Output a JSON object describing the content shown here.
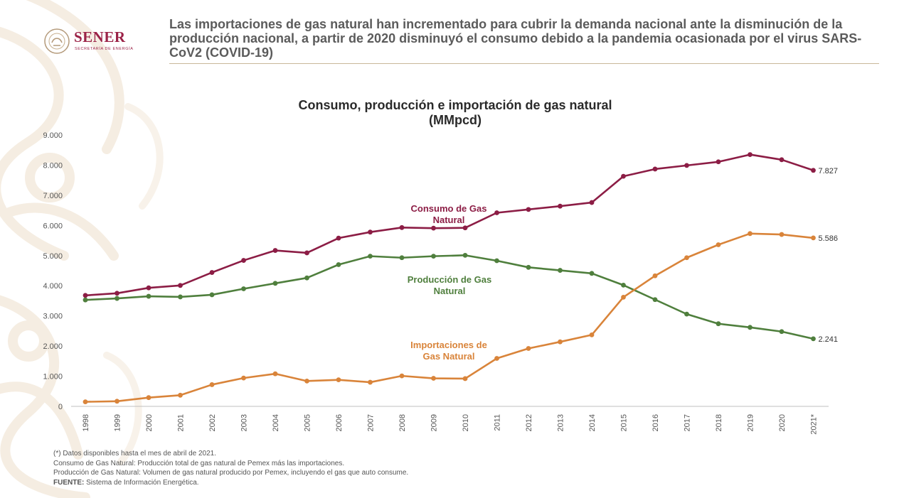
{
  "header": {
    "logo_text": "SENER",
    "logo_subtitle": "SECRETARÍA DE ENERGÍA",
    "headline": "Las importaciones de gas natural han incrementado para cubrir la demanda nacional ante la disminución de la producción nacional, a partir de 2020 disminuyó el consumo debido a la pandemia ocasionada por el virus SARS-CoV2 (COVID-19)"
  },
  "colors": {
    "consumo": "#8c1d45",
    "produccion": "#4f7f3d",
    "importaciones": "#d9843a",
    "axis": "#bfbfbf"
  },
  "chart_data": {
    "type": "line",
    "title": "Consumo, producción e importación de gas natural",
    "subtitle": "(MMpcd)",
    "ylim": [
      0,
      9000
    ],
    "yticks": [
      "0",
      "1.000",
      "2.000",
      "3.000",
      "4.000",
      "5.000",
      "6.000",
      "7.000",
      "8.000",
      "9.000"
    ],
    "categories": [
      "1998",
      "1999",
      "2000",
      "2001",
      "2002",
      "2003",
      "2004",
      "2005",
      "2006",
      "2007",
      "2008",
      "2009",
      "2010",
      "2011",
      "2012",
      "2013",
      "2014",
      "2015",
      "2016",
      "2017",
      "2018",
      "2019",
      "2020",
      "2021*"
    ],
    "grid": false,
    "series": [
      {
        "key": "consumo",
        "name_line1": "Consumo de Gas",
        "name_line2": "Natural",
        "end_label": "7.827",
        "values": [
          3680,
          3750,
          3930,
          4010,
          4440,
          4840,
          5170,
          5090,
          5580,
          5780,
          5930,
          5910,
          5920,
          6420,
          6530,
          6640,
          6760,
          7630,
          7870,
          7990,
          8110,
          8350,
          8180,
          7827
        ]
      },
      {
        "key": "produccion",
        "name_line1": "Producción de Gas",
        "name_line2": "Natural",
        "end_label": "2.241",
        "values": [
          3530,
          3580,
          3650,
          3630,
          3700,
          3900,
          4080,
          4260,
          4700,
          4980,
          4930,
          4980,
          5010,
          4830,
          4610,
          4510,
          4410,
          4020,
          3540,
          3060,
          2740,
          2620,
          2480,
          2241
        ]
      },
      {
        "key": "importaciones",
        "name_line1": "Importaciones de",
        "name_line2": "Gas Natural",
        "end_label": "5.586",
        "values": [
          150,
          170,
          290,
          370,
          720,
          940,
          1080,
          840,
          880,
          800,
          1010,
          930,
          920,
          1590,
          1920,
          2140,
          2370,
          3620,
          4330,
          4930,
          5360,
          5730,
          5700,
          5586
        ]
      }
    ]
  },
  "notes": {
    "n1": "(*) Datos disponibles hasta el mes de abril de 2021.",
    "n2": "Consumo de Gas Natural: Producción total de gas natural de Pemex más las importaciones.",
    "n3": "Producción de Gas Natural: Volumen de gas natural producido por Pemex, incluyendo el gas que auto consume.",
    "fuente_label": "FUENTE:",
    "fuente_text": " Sistema de Información Energética."
  }
}
